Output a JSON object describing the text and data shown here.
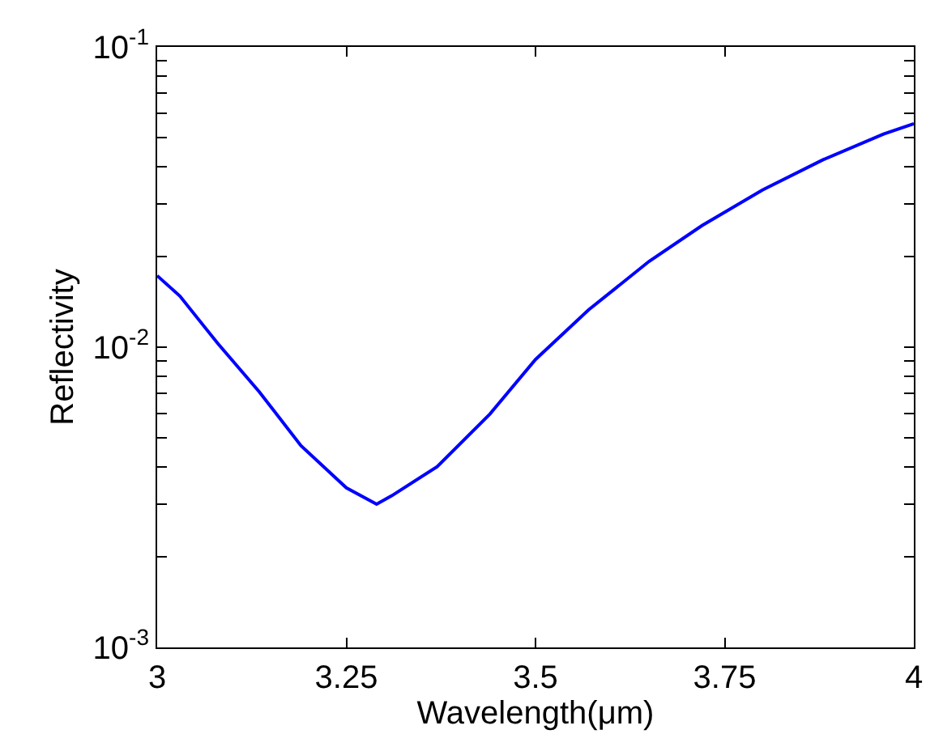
{
  "chart_data": {
    "type": "line",
    "xlabel": "Wavelength(μm)",
    "ylabel": "Reflectivity",
    "log": "y",
    "marker": "none",
    "line_style": "solid",
    "x": [
      3,
      3.03,
      3.08,
      3.135,
      3.19,
      3.25,
      3.29,
      3.31,
      3.37,
      3.44,
      3.5,
      3.57,
      3.65,
      3.72,
      3.8,
      3.88,
      3.96,
      4
    ],
    "series": [
      {
        "color": "#0000ff",
        "values": [
          0.0173,
          0.0148,
          0.0103,
          0.0071,
          0.0047,
          0.0034,
          0.003,
          0.0032,
          0.004,
          0.006,
          0.0091,
          0.0133,
          0.0193,
          0.0254,
          0.0334,
          0.0421,
          0.0513,
          0.0555
        ]
      }
    ],
    "xlim": [
      3,
      4
    ],
    "xticks": [
      3,
      3.25,
      3.5,
      3.75,
      4
    ],
    "ylim": [
      0.001,
      0.1
    ],
    "yticks": [
      {
        "value": 0.001,
        "label": "10$^{-3}$"
      },
      {
        "value": 0.002,
        "label": null
      },
      {
        "value": 0.003,
        "label": null
      },
      {
        "value": 0.004,
        "label": null
      },
      {
        "value": 0.005,
        "label": null
      },
      {
        "value": 0.006,
        "label": null
      },
      {
        "value": 0.007,
        "label": null
      },
      {
        "value": 0.008,
        "label": null
      },
      {
        "value": 0.009,
        "label": null
      },
      {
        "value": 0.01,
        "label": "10$^{-2}$"
      },
      {
        "value": 0.02,
        "label": null
      },
      {
        "value": 0.03,
        "label": null
      },
      {
        "value": 0.04,
        "label": null
      },
      {
        "value": 0.05,
        "label": null
      },
      {
        "value": 0.06,
        "label": null
      },
      {
        "value": 0.07,
        "label": null
      },
      {
        "value": 0.08,
        "label": null
      },
      {
        "value": 0.09,
        "label": null
      },
      {
        "value": 0.1,
        "label": "10$^{-1}$"
      }
    ]
  }
}
